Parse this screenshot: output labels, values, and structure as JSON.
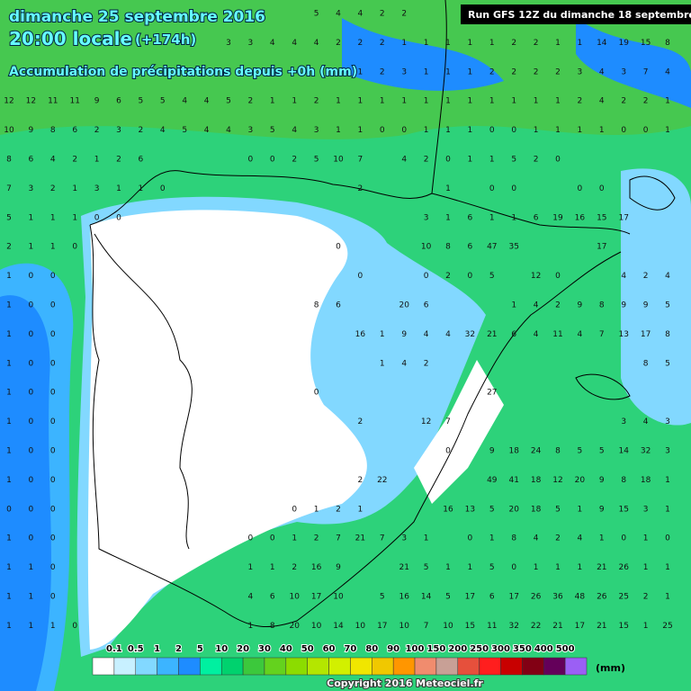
{
  "header": {
    "date": "dimanche 25 septembre 2016",
    "time": "20:00 locale",
    "offset": "(+174h)",
    "product": "Accumulation de précipitations depuis +0h (mm)",
    "run": "Run GFS 12Z du dimanche 18 septembre 2016"
  },
  "legend": {
    "labels": [
      "0.1",
      "0.5",
      "1",
      "2",
      "5",
      "10",
      "20",
      "30",
      "40",
      "50",
      "60",
      "70",
      "80",
      "90",
      "100",
      "150",
      "200",
      "250",
      "300",
      "350",
      "400",
      "500"
    ],
    "colors": [
      "#ffffff",
      "#c8f0ff",
      "#82d8ff",
      "#3cb4ff",
      "#1e8cff",
      "#00f0a0",
      "#00d26e",
      "#3cc83c",
      "#64d21e",
      "#8cdc00",
      "#b4e600",
      "#d2f000",
      "#f0e600",
      "#f0c800",
      "#ff9600",
      "#f08c6e",
      "#c8a096",
      "#e6503c",
      "#ff1e1e",
      "#c80000",
      "#820014",
      "#64005a",
      "#9b5ff5"
    ],
    "unit": "(mm)"
  },
  "copyright": "Copyright 2016 Meteociel.fr",
  "grid": [
    [
      null,
      null,
      null,
      null,
      null,
      null,
      null,
      null,
      null,
      null,
      null,
      null,
      null,
      null,
      5,
      4,
      4,
      2,
      2,
      null,
      null,
      null,
      null,
      null,
      null,
      null,
      null,
      null,
      null,
      null,
      null
    ],
    [
      null,
      null,
      null,
      null,
      null,
      null,
      null,
      null,
      null,
      null,
      3,
      3,
      4,
      4,
      4,
      2,
      2,
      2,
      1,
      1,
      1,
      1,
      1,
      2,
      2,
      1,
      1,
      14,
      19,
      15,
      8
    ],
    [
      null,
      null,
      null,
      null,
      null,
      null,
      null,
      null,
      null,
      null,
      null,
      null,
      null,
      null,
      null,
      null,
      1,
      2,
      3,
      1,
      1,
      1,
      2,
      2,
      2,
      2,
      3,
      4,
      3,
      7,
      4
    ],
    [
      12,
      12,
      11,
      11,
      9,
      6,
      5,
      5,
      4,
      4,
      5,
      2,
      1,
      1,
      2,
      1,
      1,
      1,
      1,
      1,
      1,
      1,
      1,
      1,
      1,
      1,
      2,
      4,
      2,
      2,
      1
    ],
    [
      10,
      9,
      8,
      6,
      2,
      3,
      2,
      4,
      5,
      4,
      4,
      3,
      5,
      4,
      3,
      1,
      1,
      0,
      0,
      1,
      1,
      1,
      0,
      0,
      1,
      1,
      1,
      1,
      0,
      0,
      1
    ],
    [
      8,
      6,
      4,
      2,
      1,
      2,
      6,
      null,
      null,
      null,
      null,
      0,
      0,
      2,
      5,
      10,
      7,
      null,
      4,
      2,
      0,
      1,
      1,
      5,
      2,
      0,
      null,
      null,
      null,
      null,
      null
    ],
    [
      7,
      3,
      2,
      1,
      3,
      1,
      1,
      0,
      null,
      null,
      null,
      null,
      null,
      null,
      null,
      null,
      2,
      null,
      null,
      null,
      1,
      null,
      0,
      0,
      null,
      null,
      0,
      0,
      null,
      null,
      null
    ],
    [
      5,
      1,
      1,
      1,
      0,
      0,
      null,
      null,
      null,
      null,
      null,
      null,
      null,
      null,
      null,
      null,
      null,
      null,
      null,
      3,
      1,
      6,
      1,
      1,
      6,
      19,
      16,
      15,
      17,
      null,
      null
    ],
    [
      2,
      1,
      1,
      0,
      null,
      null,
      null,
      null,
      null,
      null,
      null,
      null,
      null,
      null,
      null,
      0,
      null,
      null,
      null,
      10,
      8,
      6,
      47,
      35,
      null,
      null,
      null,
      17,
      null,
      null,
      null
    ],
    [
      1,
      0,
      0,
      null,
      null,
      null,
      null,
      null,
      null,
      null,
      null,
      null,
      null,
      null,
      null,
      null,
      0,
      null,
      null,
      0,
      2,
      0,
      5,
      null,
      12,
      0,
      null,
      null,
      4,
      2,
      4
    ],
    [
      1,
      0,
      0,
      null,
      null,
      null,
      null,
      null,
      null,
      null,
      null,
      null,
      null,
      null,
      8,
      6,
      null,
      null,
      20,
      6,
      null,
      null,
      null,
      1,
      4,
      2,
      9,
      8,
      9,
      9,
      5
    ],
    [
      1,
      0,
      0,
      null,
      null,
      null,
      null,
      null,
      null,
      null,
      null,
      null,
      null,
      null,
      null,
      null,
      16,
      1,
      9,
      4,
      4,
      32,
      21,
      6,
      4,
      11,
      4,
      7,
      13,
      17,
      8
    ],
    [
      1,
      0,
      0,
      null,
      null,
      null,
      null,
      null,
      null,
      null,
      null,
      null,
      null,
      null,
      null,
      null,
      null,
      1,
      4,
      2,
      null,
      null,
      null,
      null,
      null,
      null,
      null,
      null,
      null,
      8,
      5
    ],
    [
      1,
      0,
      0,
      null,
      null,
      null,
      null,
      null,
      null,
      null,
      null,
      null,
      null,
      null,
      0,
      null,
      null,
      null,
      null,
      null,
      null,
      null,
      27,
      null,
      null,
      null,
      null,
      null,
      null,
      null,
      null
    ],
    [
      1,
      0,
      0,
      null,
      null,
      null,
      null,
      null,
      null,
      null,
      null,
      null,
      null,
      null,
      null,
      null,
      2,
      null,
      null,
      12,
      7,
      null,
      null,
      null,
      null,
      null,
      null,
      null,
      3,
      4,
      3
    ],
    [
      1,
      0,
      0,
      null,
      null,
      null,
      null,
      null,
      null,
      null,
      null,
      null,
      null,
      null,
      null,
      null,
      null,
      null,
      null,
      null,
      0,
      null,
      9,
      18,
      24,
      8,
      5,
      5,
      14,
      32,
      3
    ],
    [
      1,
      0,
      0,
      null,
      null,
      null,
      null,
      null,
      null,
      null,
      null,
      null,
      null,
      null,
      null,
      null,
      2,
      22,
      null,
      null,
      null,
      null,
      49,
      41,
      18,
      12,
      20,
      9,
      8,
      18,
      1
    ],
    [
      0,
      0,
      0,
      null,
      null,
      null,
      null,
      null,
      null,
      null,
      null,
      null,
      null,
      0,
      1,
      2,
      1,
      null,
      null,
      null,
      16,
      13,
      5,
      20,
      18,
      5,
      1,
      9,
      15,
      3,
      1
    ],
    [
      1,
      0,
      0,
      null,
      null,
      null,
      null,
      null,
      null,
      null,
      null,
      0,
      0,
      1,
      2,
      7,
      21,
      7,
      3,
      1,
      null,
      0,
      1,
      8,
      4,
      2,
      4,
      1,
      0,
      1,
      0
    ],
    [
      1,
      1,
      0,
      null,
      null,
      null,
      null,
      null,
      null,
      null,
      null,
      1,
      1,
      2,
      16,
      9,
      null,
      null,
      21,
      5,
      1,
      1,
      5,
      0,
      1,
      1,
      1,
      21,
      26,
      1,
      1
    ],
    [
      1,
      1,
      0,
      null,
      null,
      null,
      null,
      null,
      null,
      null,
      null,
      4,
      6,
      10,
      17,
      10,
      null,
      5,
      16,
      14,
      5,
      17,
      6,
      17,
      26,
      36,
      48,
      26,
      25,
      2,
      1
    ],
    [
      1,
      1,
      1,
      0,
      null,
      null,
      null,
      null,
      null,
      null,
      null,
      1,
      8,
      20,
      10,
      14,
      10,
      17,
      10,
      7,
      10,
      15,
      11,
      32,
      22,
      21,
      17,
      21,
      15,
      1,
      25
    ]
  ]
}
